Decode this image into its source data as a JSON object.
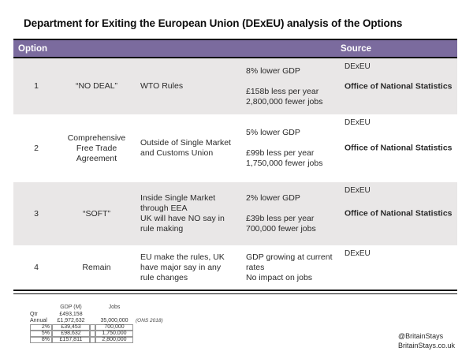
{
  "title": "Department for Exiting the European Union (DExEU) analysis of the Options",
  "colors": {
    "header_purple": "#7b6b9e",
    "row_gray": "#e9e7e7",
    "border_black": "#111111"
  },
  "table": {
    "header": {
      "option": "Option",
      "source": "Source"
    },
    "rows": [
      {
        "number": "1",
        "option": "“NO DEAL”",
        "description": "WTO Rules",
        "impact_gdp": "8% lower GDP",
        "impact_detail": "£158b less per year\n2,800,000 fewer jobs",
        "source_primary": "DExEU",
        "source_secondary": "Office of National Statistics"
      },
      {
        "number": "2",
        "option": "Comprehensive\nFree Trade\nAgreement",
        "description": "Outside of Single Market and Customs Union",
        "impact_gdp": "5% lower GDP",
        "impact_detail": "£99b less per year\n1,750,000 fewer jobs",
        "source_primary": "DExEU",
        "source_secondary": "Office of National Statistics"
      },
      {
        "number": "3",
        "option": "“SOFT”",
        "description": "Inside Single Market through EEA\nUK will have NO say in rule making",
        "impact_gdp": "2% lower GDP",
        "impact_detail": "£39b less per year\n700,000 fewer jobs",
        "source_primary": "DExEU",
        "source_secondary": "Office of National Statistics"
      },
      {
        "number": "4",
        "option": "Remain",
        "description": "EU make the rules, UK have major say in any rule changes",
        "impact_gdp": "GDP growing at current rates",
        "impact_detail": "No impact on jobs",
        "source_primary": "DExEU",
        "source_secondary": ""
      }
    ]
  },
  "mini_table": {
    "headers": {
      "gdp": "GDP (M)",
      "jobs": "Jobs"
    },
    "rows_plain": [
      {
        "label": "Qtr",
        "gdp": "£493,158",
        "jobs": "",
        "note": ""
      },
      {
        "label": "Annual",
        "gdp": "£1,972,632",
        "jobs": "35,000,000",
        "note": "(ONS 2018)"
      }
    ],
    "rows_boxed": [
      {
        "label": "2%",
        "gdp": "£39,453",
        "jobs": "700,000"
      },
      {
        "label": "5%",
        "gdp": "£98,632",
        "jobs": "1,750,000"
      },
      {
        "label": "8%",
        "gdp": "£157,811",
        "jobs": "2,800,000"
      }
    ]
  },
  "footer": {
    "handle": "@BritainStays",
    "website": "BritainStays.co.uk"
  }
}
